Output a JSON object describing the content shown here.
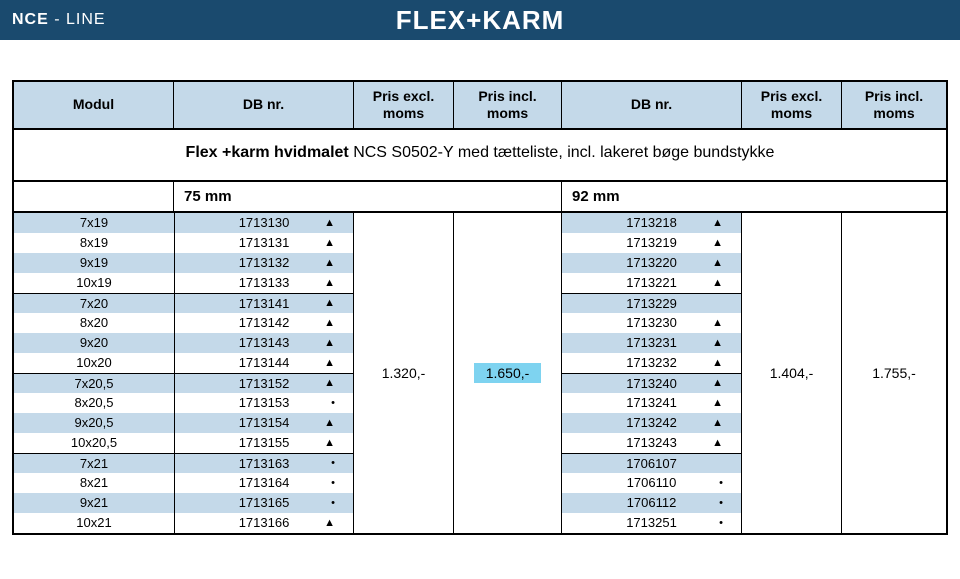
{
  "brand_bold": "NCE",
  "brand_sep": " - ",
  "brand_thin": "LINE",
  "page_title": "FLEX+KARM",
  "columns": {
    "modul": "Modul",
    "db": "DB nr.",
    "pe": "Pris excl. moms",
    "pi": "Pris incl. moms"
  },
  "description_bold": "Flex +karm hvidmalet ",
  "description_rest": "NCS S0502-Y med tætteliste, incl. lakeret bøge bundstykke",
  "size_a": "75  mm",
  "size_b": "92 mm",
  "price_a_excl": "1.320,-",
  "price_a_incl": "1.650,-",
  "price_b_excl": "1.404,-",
  "price_b_incl": "1.755,-",
  "groups": [
    {
      "rows": [
        {
          "m": "7x19",
          "a": "1713130",
          "sa": "▲",
          "b": "1713218",
          "sb": "▲"
        },
        {
          "m": "8x19",
          "a": "1713131",
          "sa": "▲",
          "b": "1713219",
          "sb": "▲"
        },
        {
          "m": "9x19",
          "a": "1713132",
          "sa": "▲",
          "b": "1713220",
          "sb": "▲"
        },
        {
          "m": "10x19",
          "a": "1713133",
          "sa": "▲",
          "b": "1713221",
          "sb": "▲"
        }
      ]
    },
    {
      "rows": [
        {
          "m": "7x20",
          "a": "1713141",
          "sa": "▲",
          "b": "1713229",
          "sb": ""
        },
        {
          "m": "8x20",
          "a": "1713142",
          "sa": "▲",
          "b": "1713230",
          "sb": "▲"
        },
        {
          "m": "9x20",
          "a": "1713143",
          "sa": "▲",
          "b": "1713231",
          "sb": "▲"
        },
        {
          "m": "10x20",
          "a": "1713144",
          "sa": "▲",
          "b": "1713232",
          "sb": "▲"
        }
      ]
    },
    {
      "rows": [
        {
          "m": "7x20,5",
          "a": "1713152",
          "sa": "▲",
          "b": "1713240",
          "sb": "▲"
        },
        {
          "m": "8x20,5",
          "a": "1713153",
          "sa": "•",
          "b": "1713241",
          "sb": "▲"
        },
        {
          "m": "9x20,5",
          "a": "1713154",
          "sa": "▲",
          "b": "1713242",
          "sb": "▲"
        },
        {
          "m": "10x20,5",
          "a": "1713155",
          "sa": "▲",
          "b": "1713243",
          "sb": "▲"
        }
      ]
    },
    {
      "rows": [
        {
          "m": "7x21",
          "a": "1713163",
          "sa": "•",
          "b": "1706107",
          "sb": ""
        },
        {
          "m": "8x21",
          "a": "1713164",
          "sa": "•",
          "b": "1706110",
          "sb": "•"
        },
        {
          "m": "9x21",
          "a": "1713165",
          "sa": "•",
          "b": "1706112",
          "sb": "•"
        },
        {
          "m": "10x21",
          "a": "1713166",
          "sa": "▲",
          "b": "1713251",
          "sb": "•"
        }
      ]
    }
  ],
  "colors": {
    "header_bg": "#1a4a6e",
    "head_cell_bg": "#c4d9e9",
    "stripe_bg": "#c4d9e9",
    "highlight_bg": "#7ed3f0",
    "border": "#000000",
    "text": "#000000",
    "header_text": "#ffffff"
  }
}
